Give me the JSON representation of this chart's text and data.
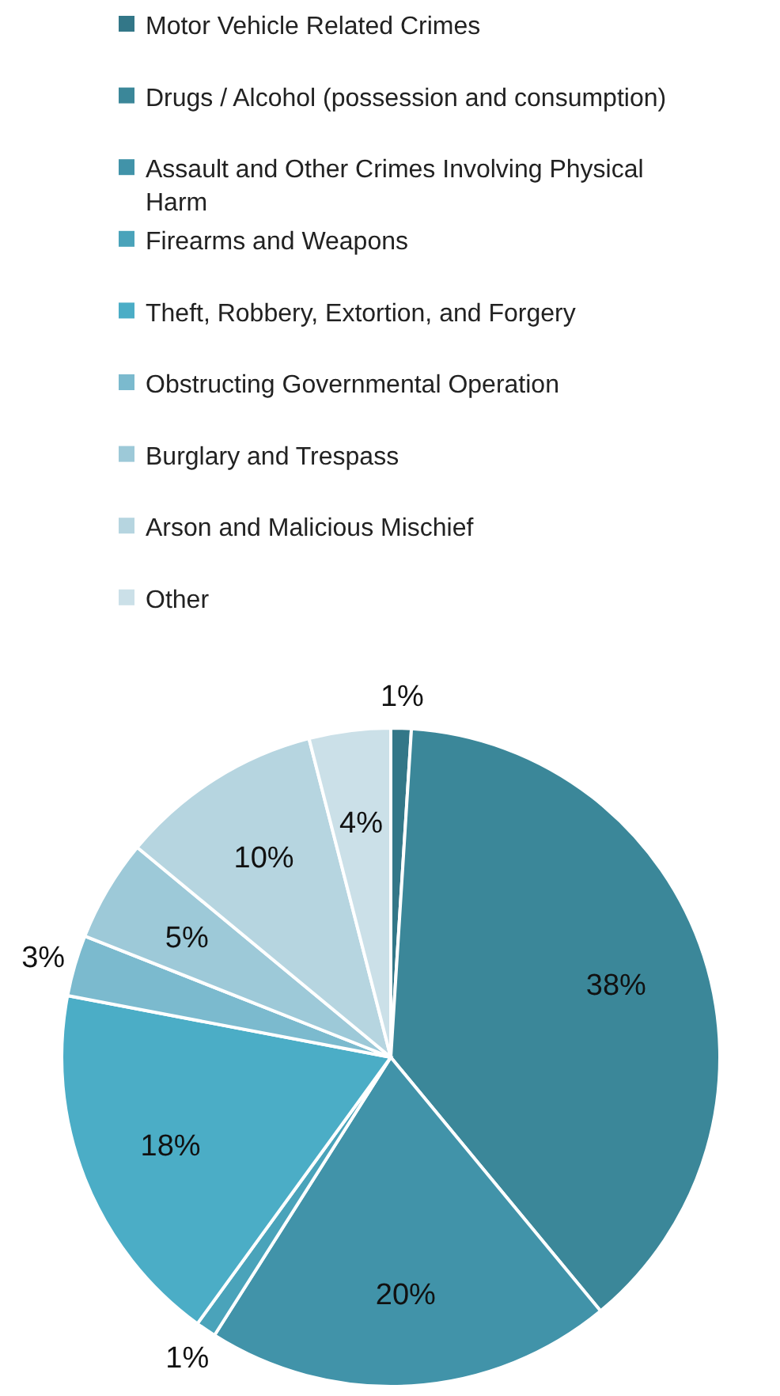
{
  "chart_data": {
    "type": "pie",
    "categories": [
      "Motor Vehicle Related Crimes",
      "Drugs / Alcohol (possession and consumption)",
      "Assault and Other Crimes Involving Physical Harm",
      "Firearms and Weapons",
      "Theft, Robbery, Extortion, and Forgery",
      "Obstructing Governmental Operation",
      "Burglary and Trespass",
      "Arson and Malicious Mischief",
      "Other"
    ],
    "values": [
      1,
      38,
      20,
      1,
      18,
      3,
      5,
      10,
      4
    ],
    "value_labels": [
      "1%",
      "38%",
      "20%",
      "1%",
      "18%",
      "3%",
      "5%",
      "10%",
      "4%"
    ],
    "colors": [
      "#337788",
      "#3b8799",
      "#4193a9",
      "#4aa3ba",
      "#4badc6",
      "#7bbace",
      "#9dc9d8",
      "#b6d5e0",
      "#cbe0e8"
    ],
    "legend": "top"
  }
}
